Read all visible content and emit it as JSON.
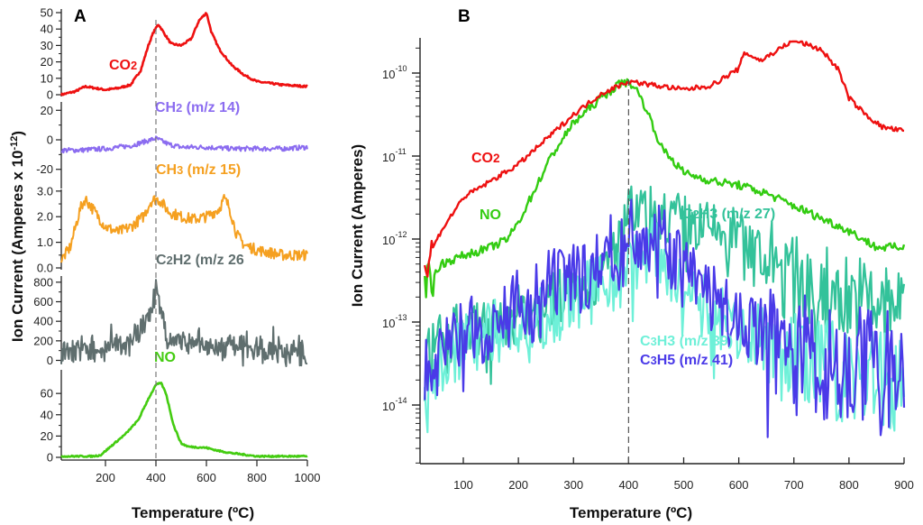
{
  "chart_data": [
    {
      "panel": "A",
      "type": "line",
      "xlabel": "Temperature (ºC)",
      "ylabel": "Ion Current (Amperes x 10",
      "ylabel_exp": "-12",
      "ylabel_close": ")",
      "xlim": [
        25,
        1000
      ],
      "xticks": [
        200,
        400,
        600,
        800,
        1000
      ],
      "annotation": {
        "type": "vline",
        "x": 400,
        "style": "dashed"
      },
      "subplots": [
        {
          "name": "CO2",
          "label_main": "CO",
          "label_sub": "2",
          "label_rest": "",
          "color": "#ee1111",
          "ylim": [
            0,
            50
          ],
          "yticks": [
            0,
            10,
            20,
            30,
            40,
            50
          ],
          "ytick_labels": [
            "0",
            "10",
            "20",
            "30",
            "40",
            "50"
          ],
          "x": [
            25,
            80,
            120,
            160,
            200,
            250,
            300,
            340,
            370,
            390,
            410,
            430,
            460,
            500,
            540,
            570,
            600,
            620,
            650,
            700,
            750,
            800,
            900,
            1000
          ],
          "y": [
            0,
            2,
            5,
            4,
            3,
            4,
            6,
            15,
            30,
            38,
            43,
            38,
            31,
            30,
            34,
            45,
            50,
            38,
            28,
            18,
            12,
            8,
            6,
            5
          ]
        },
        {
          "name": "CH2",
          "label_main": "CH",
          "label_sub": "2",
          "label_rest": " (m/z 14)",
          "color": "#8b6cf0",
          "ylim": [
            -33,
            22
          ],
          "yticks": [
            -20,
            0,
            20
          ],
          "ytick_labels": [
            "-20",
            "0",
            "20"
          ],
          "x": [
            25,
            100,
            200,
            300,
            400,
            450,
            500,
            600,
            700,
            800,
            900,
            1000
          ],
          "y": [
            -7,
            -7,
            -6,
            -4,
            1,
            -3,
            -5,
            -5,
            -6,
            -6,
            -6,
            -5
          ]
        },
        {
          "name": "CH3",
          "label_main": "CH",
          "label_sub": "3",
          "label_rest": " (m/z 15)",
          "color": "#f5a020",
          "ylim": [
            0,
            3.1
          ],
          "yticks": [
            0.0,
            1.0,
            2.0,
            3.0
          ],
          "ytick_labels": [
            "0.0",
            "1.0",
            "2.0",
            "3.0"
          ],
          "x": [
            25,
            60,
            100,
            120,
            150,
            200,
            250,
            300,
            350,
            380,
            400,
            420,
            450,
            500,
            550,
            600,
            650,
            670,
            690,
            720,
            750,
            800,
            850,
            900,
            1000
          ],
          "y": [
            0.3,
            0.8,
            2.3,
            2.7,
            2.3,
            1.6,
            1.4,
            1.6,
            2.0,
            2.6,
            2.7,
            2.6,
            2.2,
            2.0,
            1.9,
            2.0,
            2.3,
            2.7,
            2.4,
            1.3,
            0.9,
            0.7,
            0.6,
            0.5,
            0.5
          ]
        },
        {
          "name": "C2H2",
          "label_main": "C",
          "label_sub": "2",
          "label_rest": "H2 (m/z 26",
          "label_sub2": "",
          "color": "#5f6e6e",
          "ylim": [
            -60,
            900
          ],
          "yticks": [
            0,
            200,
            400,
            600,
            800
          ],
          "ytick_labels": [
            "0",
            "200",
            "400",
            "600",
            "800"
          ],
          "x": [
            25,
            100,
            200,
            300,
            350,
            380,
            400,
            420,
            450,
            500,
            600,
            700,
            800,
            900,
            950,
            1000
          ],
          "y": [
            50,
            100,
            110,
            180,
            350,
            500,
            700,
            420,
            220,
            200,
            130,
            110,
            90,
            80,
            90,
            60
          ]
        },
        {
          "name": "NO",
          "label_main": "NO",
          "label_sub": "",
          "label_rest": "",
          "color": "#44cc11",
          "ylim": [
            0,
            72
          ],
          "yticks": [
            0,
            20,
            40,
            60
          ],
          "ytick_labels": [
            "0",
            "20",
            "40",
            "60"
          ],
          "x": [
            25,
            150,
            180,
            220,
            280,
            330,
            370,
            400,
            420,
            440,
            470,
            500,
            530,
            600,
            650,
            700,
            800,
            900,
            1000
          ],
          "y": [
            1,
            1,
            2,
            10,
            22,
            35,
            55,
            68,
            70,
            60,
            30,
            13,
            10,
            9,
            6,
            4,
            1,
            1,
            1
          ]
        }
      ]
    },
    {
      "panel": "B",
      "type": "line",
      "yscale": "log",
      "xlabel": "Temperature (ºC)",
      "ylabel": "Ion Current (Amperes)",
      "xlim": [
        28,
        903
      ],
      "ylim": [
        3e-15,
        2.5e-10
      ],
      "xticks": [
        100,
        200,
        300,
        400,
        500,
        600,
        700,
        800,
        900
      ],
      "ytick_exponents": [
        -10,
        -11,
        -12,
        -13,
        -14
      ],
      "annotation": {
        "type": "vline",
        "x": 400,
        "style": "dashed"
      },
      "series": [
        {
          "name": "CO2",
          "label_main": "CO",
          "label_sub": "2",
          "label_rest": "",
          "color": "#ee1111",
          "x": [
            30,
            45,
            60,
            100,
            150,
            200,
            250,
            300,
            350,
            400,
            450,
            500,
            550,
            600,
            610,
            640,
            700,
            750,
            780,
            800,
            830,
            860,
            900
          ],
          "logy": [
            -12.3,
            -12.1,
            -11.9,
            -11.5,
            -11.3,
            -11.1,
            -10.8,
            -10.5,
            -10.25,
            -10.1,
            -10.15,
            -10.2,
            -10.15,
            -9.95,
            -9.75,
            -9.85,
            -9.6,
            -9.72,
            -9.95,
            -10.3,
            -10.5,
            -10.65,
            -10.7
          ]
        },
        {
          "name": "NO",
          "label_main": "NO",
          "label_sub": "",
          "label_rest": "",
          "color": "#33cc11",
          "x": [
            30,
            60,
            100,
            150,
            180,
            200,
            230,
            260,
            300,
            350,
            390,
            410,
            430,
            460,
            500,
            550,
            600,
            650,
            700,
            750,
            800,
            850,
            900
          ],
          "logy": [
            -12.6,
            -12.3,
            -12.2,
            -12.1,
            -12.0,
            -11.8,
            -11.4,
            -11.0,
            -10.6,
            -10.3,
            -10.1,
            -10.15,
            -10.4,
            -10.9,
            -11.2,
            -11.3,
            -11.35,
            -11.45,
            -11.6,
            -11.75,
            -11.9,
            -12.1,
            -12.1
          ]
        },
        {
          "name": "C2H3",
          "label_main": "C",
          "label_sub": "2",
          "label_rest": "H3 (m/z 27)",
          "color": "#33c29a",
          "x": [
            30,
            60,
            100,
            150,
            200,
            250,
            300,
            350,
            400,
            450,
            500,
            550,
            600,
            650,
            700,
            750,
            800,
            850,
            900
          ],
          "logy": [
            -13.5,
            -13.2,
            -13.1,
            -13.0,
            -12.9,
            -12.8,
            -12.6,
            -12.5,
            -11.7,
            -11.7,
            -11.8,
            -11.9,
            -11.95,
            -12.3,
            -12.5,
            -12.6,
            -12.7,
            -12.8,
            -12.9
          ]
        },
        {
          "name": "C3H3",
          "label_main": "C",
          "label_sub": "3",
          "label_rest": "H3  (m/z 39)",
          "color": "#6ef0d8",
          "x": [
            30,
            60,
            100,
            150,
            200,
            250,
            300,
            350,
            400,
            450,
            500,
            550,
            600,
            650,
            700,
            750,
            800,
            850,
            900
          ],
          "logy": [
            -13.8,
            -13.5,
            -13.3,
            -13.1,
            -13.1,
            -12.9,
            -12.7,
            -12.6,
            -12.3,
            -12.1,
            -12.6,
            -12.9,
            -13.1,
            -13.2,
            -13.5,
            -13.6,
            -13.6,
            -13.7,
            -13.8
          ]
        },
        {
          "name": "C3H5",
          "label_main": "C",
          "label_sub": "3",
          "label_rest": "H5  (m/z 41)",
          "color": "#4a3ae8",
          "x": [
            30,
            60,
            100,
            150,
            200,
            250,
            300,
            350,
            400,
            450,
            500,
            550,
            600,
            650,
            700,
            750,
            800,
            850,
            900
          ],
          "logy": [
            -13.6,
            -13.4,
            -13.2,
            -13.0,
            -12.8,
            -12.6,
            -12.5,
            -12.3,
            -11.9,
            -11.95,
            -12.4,
            -12.7,
            -13.0,
            -13.1,
            -13.3,
            -13.5,
            -13.5,
            -13.6,
            -13.5
          ]
        }
      ]
    }
  ]
}
